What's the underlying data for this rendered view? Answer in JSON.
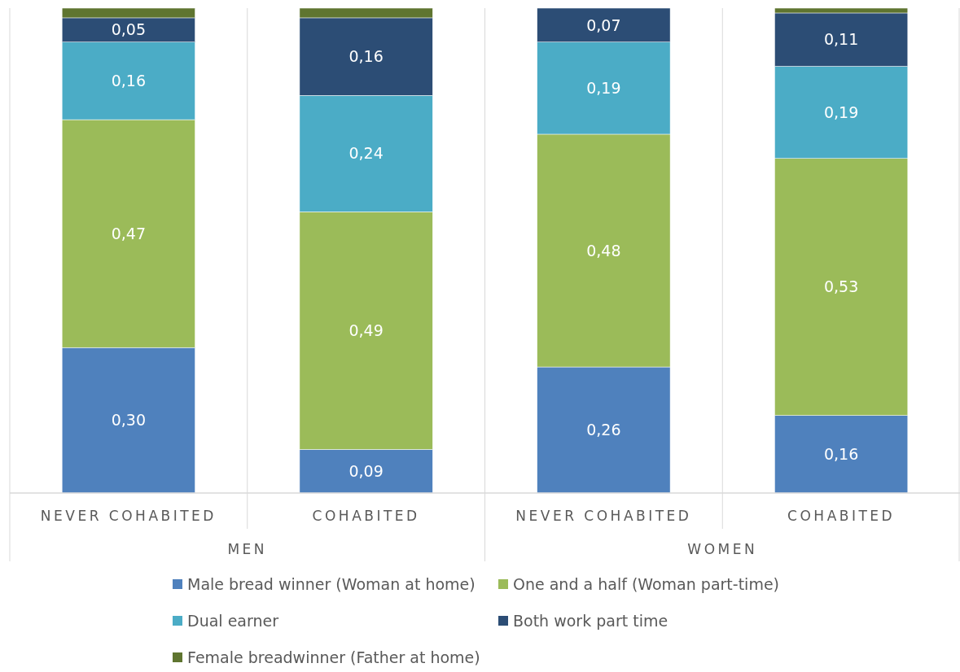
{
  "chart_data": {
    "type": "bar",
    "stacked": true,
    "categories": [
      "NEVER COHABITED",
      "COHABITED",
      "NEVER COHABITED",
      "COHABITED"
    ],
    "ylim": [
      0,
      1
    ],
    "legend": "bottom",
    "grid": "x",
    "annotations": [
      "MEN",
      "WOMEN"
    ],
    "series": [
      {
        "name": "Male bread winner (Woman at home)",
        "color": "#4f81bd",
        "values": [
          0.3,
          0.09,
          0.26,
          0.16
        ],
        "value_labels": [
          "0,30",
          "0,09",
          "0,26",
          "0,16"
        ]
      },
      {
        "name": "One and a half (Woman part-time)",
        "color": "#9bbb59",
        "values": [
          0.47,
          0.49,
          0.48,
          0.53
        ],
        "value_labels": [
          "0,47",
          "0,49",
          "0,48",
          "0,53"
        ]
      },
      {
        "name": "Dual earner",
        "color": "#4bacc6",
        "values": [
          0.16,
          0.24,
          0.19,
          0.19
        ],
        "value_labels": [
          "0,16",
          "0,24",
          "0,19",
          "0,19"
        ]
      },
      {
        "name": "Both work part time",
        "color": "#2c4d75",
        "values": [
          0.05,
          0.16,
          0.07,
          0.11
        ],
        "value_labels": [
          "0,05",
          "0,16",
          "0,07",
          "0,11"
        ]
      },
      {
        "name": "Female breadwinner (Father at home)",
        "color": "#5f7530",
        "values": [
          0.02,
          0.02,
          0.0,
          0.01
        ],
        "value_labels": [
          null,
          null,
          null,
          null
        ]
      }
    ]
  }
}
